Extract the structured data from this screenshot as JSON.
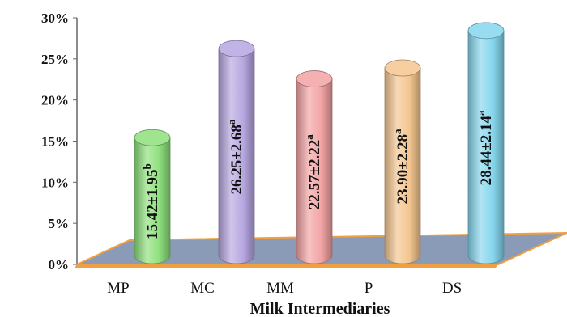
{
  "chart_data": {
    "type": "bar",
    "xlabel": "Milk Intermediaries",
    "ylabel": "",
    "ylim": [
      0,
      30
    ],
    "yticks": [
      "0%",
      "5%",
      "10%",
      "15%",
      "20%",
      "25%",
      "30%"
    ],
    "categories": [
      "MP",
      "MC",
      "MM",
      "P",
      "DS"
    ],
    "values": [
      15.42,
      26.25,
      22.57,
      23.9,
      28.44
    ],
    "labels": [
      "15.42±1.95",
      "26.25±2.68",
      "22.57±2.22",
      "23.90±2.28",
      "28.44±2.14"
    ],
    "superscripts": [
      "b",
      "a",
      "a",
      "a",
      "a"
    ],
    "colors": [
      "#8ee07c",
      "#b6a6e0",
      "#f3a3a3",
      "#f4c58f",
      "#86d6ee"
    ],
    "floor_color": "#8a9bb8",
    "floor_edge_color": "#f0a040",
    "grid": false
  }
}
